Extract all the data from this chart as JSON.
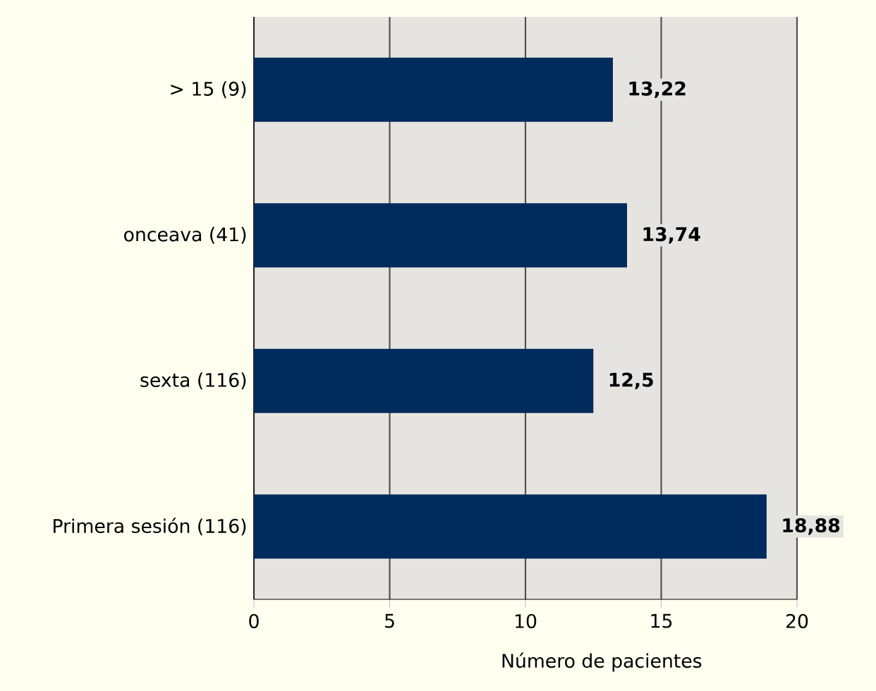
{
  "chart_data": {
    "type": "bar",
    "orientation": "horizontal",
    "xlabel": "Número de pacientes",
    "categories": [
      "> 15 (9)",
      "onceava (41)",
      "sexta (116)",
      "Primera sesión (116)"
    ],
    "values": [
      13.22,
      13.74,
      12.5,
      18.88
    ],
    "value_labels": [
      "13,22",
      "13,74",
      "12,5",
      "18,88"
    ],
    "color": "#002b5c",
    "xlim": [
      0,
      20
    ],
    "xticks": [
      0,
      5,
      10,
      15,
      20
    ],
    "grid": "x"
  }
}
